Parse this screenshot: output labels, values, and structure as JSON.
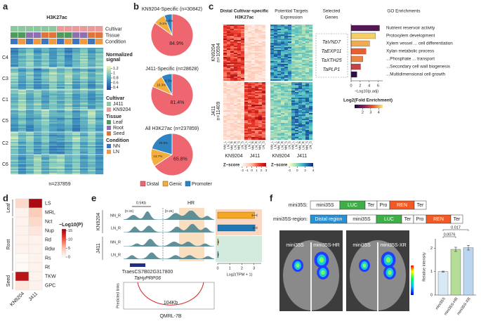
{
  "panels": {
    "a": {
      "label": "a",
      "title": "H3K27ac",
      "annotations": [
        "Cultivar",
        "Tissue",
        "Condition"
      ],
      "clusters": [
        "C4",
        "C3",
        "C1",
        "C5",
        "C2",
        "C6"
      ],
      "legend": {
        "title": [
          "Normalized",
          "signal"
        ],
        "ticks": [
          1.2,
          1,
          0.8,
          0.6,
          0.4
        ],
        "lim": [
          0.3,
          1.3
        ]
      },
      "cultivar": {
        "title": "Cultivar",
        "items": [
          {
            "name": "J411",
            "color": "#8cc7a0"
          },
          {
            "name": "KN9204",
            "color": "#e99a9a"
          }
        ]
      },
      "tissue": {
        "title": "Tissue",
        "items": [
          {
            "name": "Leaf",
            "color": "#4f9a5c"
          },
          {
            "name": "Root",
            "color": "#8e6fb0"
          },
          {
            "name": "Seed",
            "color": "#e0743a"
          }
        ]
      },
      "condition": {
        "title": "Condition",
        "items": [
          {
            "name": "NN",
            "color": "#3f74bf"
          },
          {
            "name": "LN",
            "color": "#ef9a43"
          }
        ]
      },
      "footer": "n=237859"
    },
    "b": {
      "label": "b",
      "categories": [
        "Distal",
        "Genic",
        "Promoter"
      ],
      "colors": [
        "#ee6770",
        "#f4ae3e",
        "#2e84c3"
      ],
      "pies": [
        {
          "title": "KN9204-Specific (n=30842)",
          "values": [
            84.9,
            9.1,
            6.0
          ],
          "value_labels": [
            "84.9%",
            "9.1%",
            "6.0%"
          ]
        },
        {
          "title": "J411-Specific (n=28628)",
          "values": [
            81.4,
            10.3,
            8.3
          ],
          "value_labels": [
            "81.4%",
            "10.3%",
            "8.3%"
          ]
        },
        {
          "title": "All H3K27ac (n=237859)",
          "values": [
            65.8,
            13.7,
            20.5
          ],
          "value_labels": [
            "65.8%",
            "13.7%",
            "20.5%"
          ]
        }
      ]
    },
    "c": {
      "label": "c",
      "heatmap_titles": [
        [
          "Distal Cultivar-specific",
          "H3K27ac"
        ],
        [
          "Potential Targets",
          "Expression"
        ]
      ],
      "genes_title": [
        "Selected",
        "Genes"
      ],
      "go_title": "GO Enrichments",
      "row_groups": [
        [
          "KN9204",
          "n=10594"
        ],
        [
          "J411",
          "n=11409"
        ]
      ],
      "columns": [
        "NN_L",
        "LN_L",
        "NN_R",
        "LN_R",
        "NN_S",
        "LN_S"
      ],
      "column_groups": [
        "KN9204",
        "J411"
      ],
      "genes": [
        "TaVND7",
        "TaEXP11",
        "TaXTH25",
        "TaPLP1"
      ],
      "go": {
        "terms": [
          "Nutrient reservoir activity",
          "Protoxylem development",
          "Xylem vessel ... cell differentiation",
          "Xylan metabolic process",
          "...Phosphate ... transport",
          "...Secondary cell wall biogenesis",
          "...Multidimensional cell growth"
        ],
        "values": [
          6.3,
          5.4,
          4.1,
          3.3,
          2.6,
          2.1,
          1.3
        ],
        "fold": [
          1.6,
          4.3,
          4.0,
          3.4,
          3.7,
          2.9,
          1.2
        ],
        "xlim": [
          0,
          7
        ],
        "xticks": [
          0,
          2,
          4,
          6
        ],
        "xlabel": "−Log10(p.adj)",
        "fold_title": "Log2(Fold Enrichment)",
        "fold_ticks": [
          2,
          3,
          4
        ],
        "fold_lim": [
          1,
          4.5
        ]
      },
      "zscore1": {
        "title": "Z−score",
        "ticks": [
          -2,
          -1,
          0,
          1,
          2,
          3
        ],
        "lim": [
          -2,
          3
        ]
      },
      "zscore2": {
        "title": "Z−score",
        "ticks": [
          -2,
          0,
          2,
          4
        ],
        "lim": [
          -2,
          4
        ]
      }
    },
    "d": {
      "label": "d",
      "columns": [
        "KN9204",
        "J411"
      ],
      "groups": [
        {
          "name": "Leaf",
          "traits": [
            "LS",
            "MRL"
          ],
          "values": [
            [
              3,
              15
            ],
            [
              1,
              4
            ]
          ]
        },
        {
          "name": "Root",
          "traits": [
            "Nct",
            "Nup",
            "Rd",
            "Rdw",
            "Rs",
            "Rt"
          ],
          "values": [
            [
              1,
              3
            ],
            [
              1,
              2
            ],
            [
              1,
              1
            ],
            [
              1,
              1
            ],
            [
              0.5,
              1
            ],
            [
              0.5,
              1
            ]
          ]
        },
        {
          "name": "Seed",
          "traits": [
            "TKW",
            "GPC"
          ],
          "values": [
            [
              14,
              1
            ],
            [
              2,
              1
            ]
          ]
        }
      ],
      "legend": {
        "title": "−Log10(P)",
        "ticks": [
          15,
          10,
          5,
          0
        ],
        "lim": [
          0,
          16
        ]
      }
    },
    "e": {
      "label": "e",
      "scale": "0.5Kb",
      "region": "HR",
      "ranges": [
        "[0-33]",
        "[0-26]"
      ],
      "groups": [
        {
          "name": "KN9204",
          "tracks": [
            "NN_R",
            "LN_R"
          ],
          "values": [
            3.05,
            3.1
          ],
          "errors": [
            0.2,
            0.15
          ]
        },
        {
          "name": "J411",
          "tracks": [
            "NN_R",
            "LN_R"
          ],
          "values": [
            0.05,
            0.04
          ],
          "errors": [
            0.02,
            0.02
          ]
        }
      ],
      "colors": [
        "#f5a623",
        "#1f78b4"
      ],
      "gene_id": "TraesCS7B02G317800",
      "gene_name": "TaHyPRP06",
      "links_label": "Predicted links",
      "link_distance": "104Kb",
      "locus": "QMRL-7B",
      "xlim": [
        0,
        3.6
      ],
      "xticks": [
        0,
        1,
        2,
        3
      ],
      "xlabel": "Log2(TPM + 1)"
    },
    "f": {
      "label": "f",
      "constructs": [
        {
          "name": "mini35S:",
          "parts": [
            {
              "name": "mini35S",
              "color": "#ffffff"
            },
            {
              "name": "LUC",
              "color": "#3fae49"
            },
            {
              "name": "Ter",
              "color": "#ffffff"
            },
            {
              "name": "Pro",
              "color": "#ffffff"
            },
            {
              "name": "REN",
              "color": "#f15a24"
            },
            {
              "name": "Ter",
              "color": "#ffffff"
            }
          ]
        },
        {
          "name": "mini35S-region:",
          "parts": [
            {
              "name": "Distal region",
              "color": "#2a8fd0"
            },
            {
              "name": "mini35S",
              "color": "#ffffff"
            },
            {
              "name": "LUC",
              "color": "#3fae49"
            },
            {
              "name": "Ter",
              "color": "#ffffff"
            },
            {
              "name": "Pro",
              "color": "#ffffff"
            },
            {
              "name": "REN",
              "color": "#f15a24"
            },
            {
              "name": "Ter",
              "color": "#ffffff"
            }
          ]
        }
      ],
      "images": [
        [
          "mini35S",
          "mini35S-HR"
        ],
        [
          "mini35S",
          "mini35S-XR"
        ]
      ],
      "bars": {
        "categories": [
          "mini35S",
          "mini35S-HR",
          "mini35S-XR"
        ],
        "values": [
          1,
          1.95,
          2.02
        ],
        "errors": [
          0.02,
          0.09,
          0.1
        ],
        "colors": [
          "#d8e9f6",
          "#b6dd98",
          "#b9d5ef"
        ],
        "ylim": [
          0,
          2.4
        ],
        "yticks": [
          0,
          1,
          2
        ],
        "ylabel": "Relative intensity",
        "pvalues": [
          "0.0076",
          "0.017"
        ]
      }
    }
  }
}
